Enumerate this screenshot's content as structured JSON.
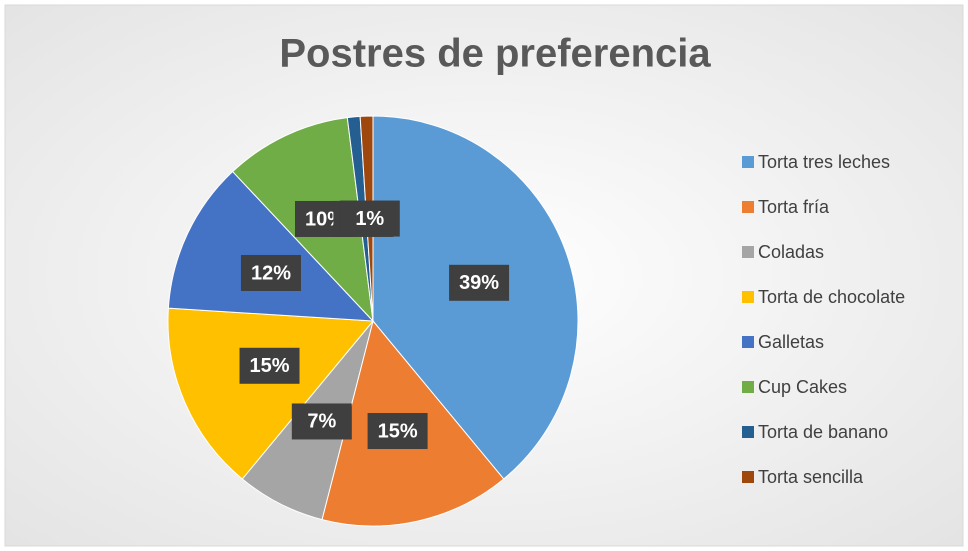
{
  "chart_data": {
    "type": "pie",
    "title": "Postres de preferencia",
    "categories": [
      "Torta tres leches",
      "Torta fría",
      "Coladas",
      "Torta de chocolate",
      "Galletas",
      "Cup Cakes",
      "Torta de banano",
      "Torta sencilla"
    ],
    "values": [
      39,
      15,
      7,
      15,
      12,
      10,
      1,
      1
    ],
    "value_labels": [
      "39%",
      "15%",
      "7%",
      "15%",
      "12%",
      "10%",
      "1%",
      "1%"
    ],
    "colors": [
      "#5b9bd5",
      "#ed7d31",
      "#a5a5a5",
      "#ffc000",
      "#4472c4",
      "#70ad47",
      "#255e91",
      "#9e480e"
    ],
    "legend": "right"
  }
}
